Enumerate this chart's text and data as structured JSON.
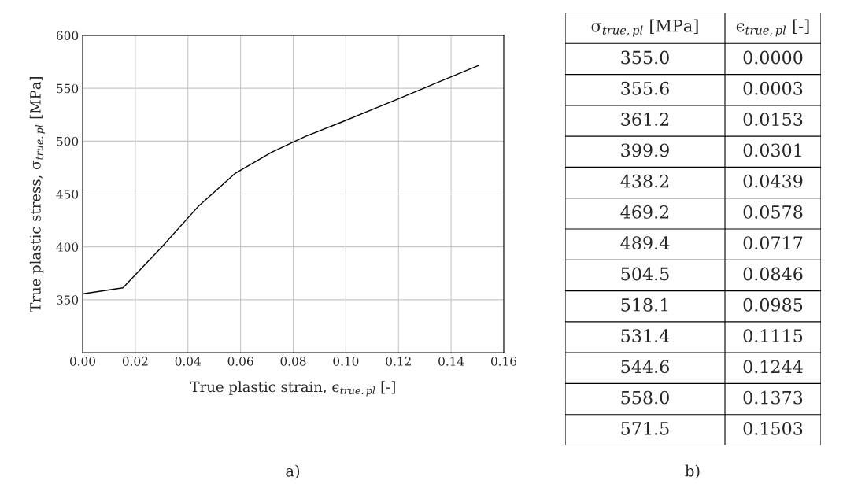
{
  "chart_data": [
    {
      "type": "line",
      "xlabel": "True plastic strain, ϵ$_{true.pl}$ [-]",
      "ylabel": "True plastic stress, σ$_{true.pl}$ [MPa]",
      "x": [
        0.0,
        0.0003,
        0.0153,
        0.0301,
        0.0439,
        0.0578,
        0.0717,
        0.0846,
        0.0985,
        0.1115,
        0.1244,
        0.1373,
        0.1503
      ],
      "series": [
        {
          "color": "#000000",
          "values": [
            355.0,
            355.6,
            361.2,
            399.9,
            438.2,
            469.2,
            489.4,
            504.5,
            518.1,
            531.4,
            544.6,
            558.0,
            571.5
          ]
        }
      ],
      "xlim": [
        0,
        0.16
      ],
      "xticks": [
        {
          "value": 0,
          "label": "0.00"
        },
        {
          "value": 0.02,
          "label": "0.02"
        },
        {
          "value": 0.04,
          "label": "0.04"
        },
        {
          "value": 0.06,
          "label": "0.06"
        },
        {
          "value": 0.08,
          "label": "0.08"
        },
        {
          "value": 0.1,
          "label": "0.10"
        },
        {
          "value": 0.12,
          "label": "0.12"
        },
        {
          "value": 0.14,
          "label": "0.14"
        },
        {
          "value": 0.16,
          "label": "0.16"
        }
      ],
      "ylim": [
        300,
        600
      ],
      "yticks": [
        350,
        400,
        450,
        500,
        550,
        600
      ],
      "grid": true,
      "marker": "none",
      "line_style": "solid",
      "annotations": [
        "a)"
      ]
    },
    {
      "type": "other",
      "annotations": [
        "b)",
        "σ$_{true,pl}$ [MPa]",
        "ϵ$_{true,pl}$ [-]",
        "355.0",
        "0.0000",
        "355.6",
        "0.0003",
        "361.2",
        "0.0153",
        "399.9",
        "0.0301",
        "438.2",
        "0.0439",
        "469.2",
        "0.0578",
        "489.4",
        "0.0717",
        "504.5",
        "0.0846",
        "518.1",
        "0.0985",
        "531.4",
        "0.1115",
        "544.6",
        "0.1244",
        "558.0",
        "0.1373",
        "571.5",
        "0.1503"
      ]
    }
  ]
}
